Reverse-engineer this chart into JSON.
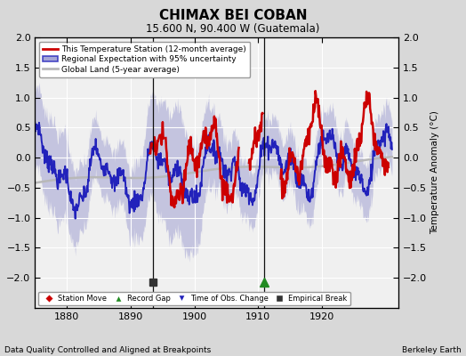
{
  "title": "CHIMAX BEI COBAN",
  "subtitle": "15.600 N, 90.400 W (Guatemala)",
  "xlabel_left": "Data Quality Controlled and Aligned at Breakpoints",
  "xlabel_right": "Berkeley Earth",
  "ylabel": "Temperature Anomaly (°C)",
  "xlim": [
    1875,
    1932
  ],
  "ylim": [
    -2.5,
    2.0
  ],
  "yticks": [
    -2.0,
    -1.5,
    -1.0,
    -0.5,
    0.0,
    0.5,
    1.0,
    1.5,
    2.0
  ],
  "xticks": [
    1880,
    1890,
    1900,
    1910,
    1920
  ],
  "bg_color": "#d8d8d8",
  "plot_bg": "#f0f0f0",
  "grid_color": "#ffffff",
  "shade_color": "#9090cc",
  "shade_alpha": 0.45,
  "regional_color": "#2222bb",
  "station_color": "#cc0000",
  "global_color": "#b8b8b8",
  "empirical_break_x": 1893.5,
  "record_gap_x": 1911.0,
  "vline_x1": 1893.5,
  "vline_x2": 1911.0,
  "vline_color": "#111111",
  "legend_labels": [
    "This Temperature Station (12-month average)",
    "Regional Expectation with 95% uncertainty",
    "Global Land (5-year average)"
  ],
  "marker_legend": [
    {
      "label": "Station Move",
      "color": "#cc0000",
      "marker": "D"
    },
    {
      "label": "Record Gap",
      "color": "#228B22",
      "marker": "^"
    },
    {
      "label": "Time of Obs. Change",
      "color": "#2222bb",
      "marker": "v"
    },
    {
      "label": "Empirical Break",
      "color": "#333333",
      "marker": "s"
    }
  ]
}
